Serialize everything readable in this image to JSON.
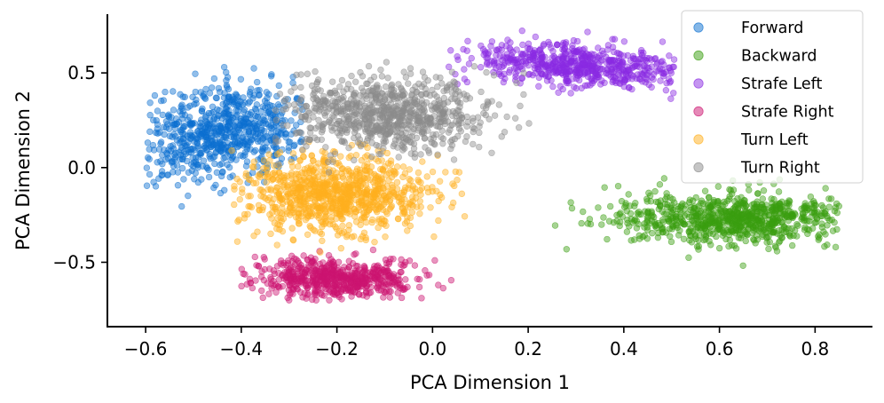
{
  "chart_data": {
    "type": "scatter",
    "title": "",
    "xlabel": "PCA Dimension 1",
    "ylabel": "PCA Dimension 2",
    "xlim": [
      -0.68,
      0.92
    ],
    "ylim": [
      -0.84,
      0.81
    ],
    "xticks": [
      -0.6,
      -0.4,
      -0.2,
      0.0,
      0.2,
      0.4,
      0.6,
      0.8
    ],
    "xtick_labels": [
      "−0.6",
      "−0.4",
      "−0.2",
      "0.0",
      "0.2",
      "0.4",
      "0.6",
      "0.8"
    ],
    "yticks": [
      -0.5,
      0.0,
      0.5
    ],
    "ytick_labels": [
      "−0.5",
      "0.0",
      "0.5"
    ],
    "grid": false,
    "legend_position": "top-right",
    "marker_alpha": 0.45,
    "series": [
      {
        "name": "Forward",
        "color": "#0b6fd0",
        "n_points": 700,
        "center": [
          -0.44,
          0.19
        ],
        "spread": [
          0.085,
          0.13
        ],
        "axis_angle_deg": -20,
        "x_range": [
          -0.6,
          -0.27
        ],
        "y_range": [
          -0.24,
          0.59
        ]
      },
      {
        "name": "Backward",
        "color": "#3a9e10",
        "n_points": 800,
        "center": [
          0.63,
          -0.27
        ],
        "spread": [
          0.13,
          0.07
        ],
        "axis_angle_deg": 0,
        "x_range": [
          0.22,
          0.85
        ],
        "y_range": [
          -0.52,
          -0.02
        ]
      },
      {
        "name": "Strafe Left",
        "color": "#8a2be2",
        "n_points": 600,
        "center": [
          0.3,
          0.54
        ],
        "spread": [
          0.12,
          0.055
        ],
        "axis_angle_deg": -12,
        "x_range": [
          0.02,
          0.51
        ],
        "y_range": [
          0.36,
          0.73
        ]
      },
      {
        "name": "Strafe Right",
        "color": "#cc1470",
        "n_points": 600,
        "center": [
          -0.2,
          -0.58
        ],
        "spread": [
          0.085,
          0.05
        ],
        "axis_angle_deg": -5,
        "x_range": [
          -0.4,
          0.05
        ],
        "y_range": [
          -0.74,
          -0.43
        ]
      },
      {
        "name": "Turn Left",
        "color": "#ffb01e",
        "n_points": 900,
        "center": [
          -0.2,
          -0.14
        ],
        "spread": [
          0.1,
          0.1
        ],
        "axis_angle_deg": 15,
        "x_range": [
          -0.42,
          0.08
        ],
        "y_range": [
          -0.46,
          0.2
        ]
      },
      {
        "name": "Turn Right",
        "color": "#8c8c8c",
        "n_points": 800,
        "center": [
          -0.1,
          0.28
        ],
        "spread": [
          0.11,
          0.1
        ],
        "axis_angle_deg": -15,
        "x_range": [
          -0.33,
          0.21
        ],
        "y_range": [
          -0.04,
          0.56
        ]
      }
    ]
  }
}
